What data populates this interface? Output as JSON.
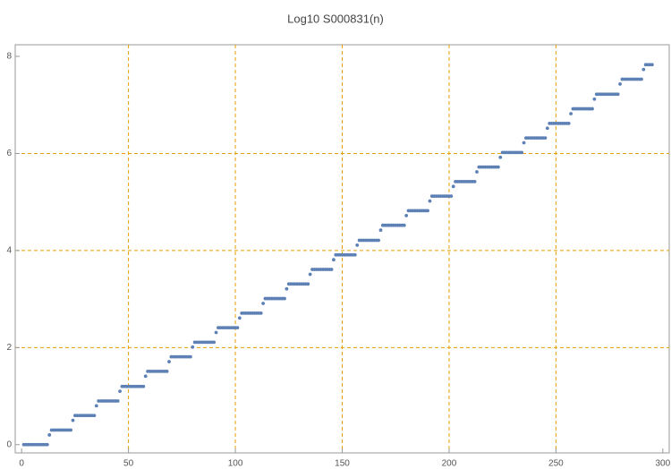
{
  "chart_data": {
    "type": "scatter",
    "title": "Log10 S000831(n)",
    "color": "#5e81b5",
    "grid_color": "#e69f00",
    "xlim": [
      -3,
      303
    ],
    "ylim": [
      -0.17,
      8.24
    ],
    "xticks": [
      0,
      50,
      100,
      150,
      200,
      250,
      300
    ],
    "yticks": [
      0,
      2,
      4,
      6,
      8
    ],
    "xgrid": [
      50,
      100,
      150,
      200,
      250
    ],
    "ygrid": [
      2,
      4,
      6
    ],
    "x": [
      1,
      2,
      3,
      4,
      5,
      6,
      7,
      8,
      9,
      10,
      11,
      12,
      13,
      14,
      15,
      16,
      17,
      18,
      19,
      20,
      21,
      22,
      23,
      24,
      25,
      26,
      27,
      28,
      29,
      30,
      31,
      32,
      33,
      34,
      35,
      36,
      37,
      38,
      39,
      40,
      41,
      42,
      43,
      44,
      45,
      46,
      47,
      48,
      49,
      50,
      51,
      52,
      53,
      54,
      55,
      56,
      57,
      58,
      59,
      60,
      61,
      62,
      63,
      64,
      65,
      66,
      67,
      68,
      69,
      70,
      71,
      72,
      73,
      74,
      75,
      76,
      77,
      78,
      79,
      80,
      81,
      82,
      83,
      84,
      85,
      86,
      87,
      88,
      89,
      90,
      91,
      92,
      93,
      94,
      95,
      96,
      97,
      98,
      99,
      100,
      101,
      102,
      103,
      104,
      105,
      106,
      107,
      108,
      109,
      110,
      111,
      112,
      113,
      114,
      115,
      116,
      117,
      118,
      119,
      120,
      121,
      122,
      123,
      124,
      125,
      126,
      127,
      128,
      129,
      130,
      131,
      132,
      133,
      134,
      135,
      136,
      137,
      138,
      139,
      140,
      141,
      142,
      143,
      144,
      145,
      146,
      147,
      148,
      149,
      150,
      151,
      152,
      153,
      154,
      155,
      156,
      157,
      158,
      159,
      160,
      161,
      162,
      163,
      164,
      165,
      166,
      167,
      168,
      169,
      170,
      171,
      172,
      173,
      174,
      175,
      176,
      177,
      178,
      179,
      180,
      181,
      182,
      183,
      184,
      185,
      186,
      187,
      188,
      189,
      190,
      191,
      192,
      193,
      194,
      195,
      196,
      197,
      198,
      199,
      200,
      201,
      202,
      203,
      204,
      205,
      206,
      207,
      208,
      209,
      210,
      211,
      212,
      213,
      214,
      215,
      216,
      217,
      218,
      219,
      220,
      221,
      222,
      223,
      224,
      225,
      226,
      227,
      228,
      229,
      230,
      231,
      232,
      233,
      234,
      235,
      236,
      237,
      238,
      239,
      240,
      241,
      242,
      243,
      244,
      245,
      246,
      247,
      248,
      249,
      250,
      251,
      252,
      253,
      254,
      255,
      256,
      257,
      258,
      259,
      260,
      261,
      262,
      263,
      264,
      265,
      266,
      267,
      268,
      269,
      270,
      271,
      272,
      273,
      274,
      275,
      276,
      277,
      278,
      279,
      280,
      281,
      282,
      283,
      284,
      285,
      286,
      287,
      288,
      289,
      290,
      291,
      292,
      293,
      294,
      295
    ],
    "values": [
      0,
      0,
      0,
      0,
      0,
      0,
      0,
      0,
      0,
      0,
      0,
      0,
      0.2,
      0.3,
      0.3,
      0.3,
      0.3,
      0.3,
      0.3,
      0.3,
      0.3,
      0.3,
      0.3,
      0.5,
      0.6,
      0.6,
      0.6,
      0.6,
      0.6,
      0.6,
      0.6,
      0.6,
      0.6,
      0.6,
      0.8,
      0.9,
      0.9,
      0.9,
      0.9,
      0.9,
      0.9,
      0.9,
      0.9,
      0.9,
      0.9,
      1.1,
      1.2,
      1.2,
      1.2,
      1.2,
      1.2,
      1.2,
      1.2,
      1.2,
      1.2,
      1.2,
      1.2,
      1.41,
      1.51,
      1.51,
      1.51,
      1.51,
      1.51,
      1.51,
      1.51,
      1.51,
      1.51,
      1.51,
      1.71,
      1.81,
      1.81,
      1.81,
      1.81,
      1.81,
      1.81,
      1.81,
      1.81,
      1.81,
      1.81,
      2.01,
      2.11,
      2.11,
      2.11,
      2.11,
      2.11,
      2.11,
      2.11,
      2.11,
      2.11,
      2.11,
      2.31,
      2.41,
      2.41,
      2.41,
      2.41,
      2.41,
      2.41,
      2.41,
      2.41,
      2.41,
      2.41,
      2.61,
      2.71,
      2.71,
      2.71,
      2.71,
      2.71,
      2.71,
      2.71,
      2.71,
      2.71,
      2.71,
      2.91,
      3.01,
      3.01,
      3.01,
      3.01,
      3.01,
      3.01,
      3.01,
      3.01,
      3.01,
      3.01,
      3.21,
      3.31,
      3.31,
      3.31,
      3.31,
      3.31,
      3.31,
      3.31,
      3.31,
      3.31,
      3.31,
      3.51,
      3.61,
      3.61,
      3.61,
      3.61,
      3.61,
      3.61,
      3.61,
      3.61,
      3.61,
      3.61,
      3.81,
      3.91,
      3.91,
      3.91,
      3.91,
      3.91,
      3.91,
      3.91,
      3.91,
      3.91,
      3.91,
      4.11,
      4.21,
      4.21,
      4.21,
      4.21,
      4.21,
      4.21,
      4.21,
      4.21,
      4.21,
      4.21,
      4.42,
      4.52,
      4.52,
      4.52,
      4.52,
      4.52,
      4.52,
      4.52,
      4.52,
      4.52,
      4.52,
      4.52,
      4.72,
      4.82,
      4.82,
      4.82,
      4.82,
      4.82,
      4.82,
      4.82,
      4.82,
      4.82,
      4.82,
      5.02,
      5.12,
      5.12,
      5.12,
      5.12,
      5.12,
      5.12,
      5.12,
      5.12,
      5.12,
      5.12,
      5.32,
      5.42,
      5.42,
      5.42,
      5.42,
      5.42,
      5.42,
      5.42,
      5.42,
      5.42,
      5.42,
      5.62,
      5.72,
      5.72,
      5.72,
      5.72,
      5.72,
      5.72,
      5.72,
      5.72,
      5.72,
      5.72,
      5.92,
      6.02,
      6.02,
      6.02,
      6.02,
      6.02,
      6.02,
      6.02,
      6.02,
      6.02,
      6.02,
      6.22,
      6.32,
      6.32,
      6.32,
      6.32,
      6.32,
      6.32,
      6.32,
      6.32,
      6.32,
      6.32,
      6.52,
      6.62,
      6.62,
      6.62,
      6.62,
      6.62,
      6.62,
      6.62,
      6.62,
      6.62,
      6.62,
      6.82,
      6.92,
      6.92,
      6.92,
      6.92,
      6.92,
      6.92,
      6.92,
      6.92,
      6.92,
      6.92,
      7.12,
      7.22,
      7.22,
      7.22,
      7.22,
      7.22,
      7.22,
      7.22,
      7.22,
      7.22,
      7.22,
      7.22,
      7.43,
      7.53,
      7.53,
      7.53,
      7.53,
      7.53,
      7.53,
      7.53,
      7.53,
      7.53,
      7.53,
      7.73,
      7.83,
      7.83,
      7.83,
      7.83
    ]
  }
}
